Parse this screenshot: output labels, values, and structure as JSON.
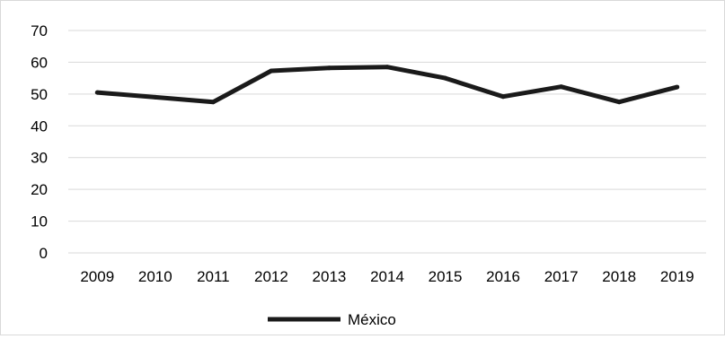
{
  "chart_data": {
    "type": "line",
    "categories": [
      "2009",
      "2010",
      "2011",
      "2012",
      "2013",
      "2014",
      "2015",
      "2016",
      "2017",
      "2018",
      "2019"
    ],
    "series": [
      {
        "name": "México",
        "values": [
          50.5,
          49.0,
          47.5,
          57.3,
          58.2,
          58.5,
          55.0,
          49.2,
          52.3,
          47.5,
          52.2
        ],
        "color": "#1a1a1a"
      }
    ],
    "yticks": [
      "0",
      "10",
      "20",
      "30",
      "40",
      "50",
      "60",
      "70"
    ],
    "ylim": [
      0,
      70
    ],
    "grid": true,
    "legend_position": "bottom",
    "title": "",
    "xlabel": "",
    "ylabel": ""
  }
}
